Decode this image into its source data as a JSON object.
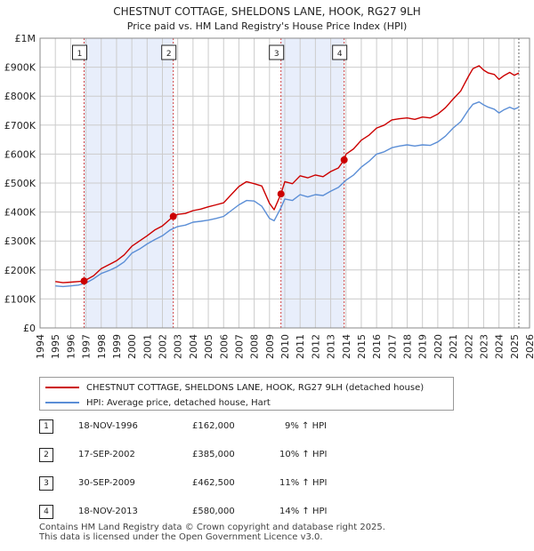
{
  "colors": {
    "property": "#cc0000",
    "hpi": "#5b8ed6",
    "shade": "#e8eefb",
    "grid": "#cccccc",
    "marker_line": "#d04040"
  },
  "chart_data": {
    "type": "line",
    "title": "CHESTNUT COTTAGE, SHELDONS LANE, HOOK, RG27 9LH",
    "subtitle": "Price paid vs. HM Land Registry's House Price Index (HPI)",
    "xlim": [
      1994,
      2026
    ],
    "ylim": [
      0,
      1000000
    ],
    "x_ticks": [
      1994,
      1995,
      1996,
      1997,
      1998,
      1999,
      2000,
      2001,
      2002,
      2003,
      2004,
      2005,
      2006,
      2007,
      2008,
      2009,
      2010,
      2011,
      2012,
      2013,
      2014,
      2015,
      2016,
      2017,
      2018,
      2019,
      2020,
      2021,
      2022,
      2023,
      2024,
      2025,
      2026
    ],
    "x_tick_labels": [
      "1994",
      "1995",
      "1996",
      "1997",
      "1998",
      "1999",
      "2000",
      "2001",
      "2002",
      "2003",
      "2004",
      "2005",
      "2006",
      "2007",
      "2008",
      "2009",
      "2010",
      "2011",
      "2012",
      "2013",
      "2014",
      "2015",
      "2016",
      "2017",
      "2018",
      "2019",
      "2020",
      "2021",
      "2022",
      "2023",
      "2024",
      "2025",
      "2026"
    ],
    "y_ticks": [
      0,
      100000,
      200000,
      300000,
      400000,
      500000,
      600000,
      700000,
      800000,
      900000,
      1000000
    ],
    "y_tick_labels": [
      "£0",
      "£100K",
      "£200K",
      "£300K",
      "£400K",
      "£500K",
      "£600K",
      "£700K",
      "£800K",
      "£900K",
      "£1M"
    ],
    "shaded_periods": [
      [
        1996.88,
        2002.71
      ],
      [
        2009.75,
        2013.88
      ]
    ],
    "latest_data_marker": 2025.3,
    "series": [
      {
        "name": "CHESTNUT COTTAGE, SHELDONS LANE, HOOK, RG27 9LH (detached house)",
        "x": [
          1995,
          1995.5,
          1996,
          1996.5,
          1996.88,
          1997.5,
          1998,
          1998.5,
          1999,
          1999.5,
          2000,
          2000.5,
          2001,
          2001.5,
          2002,
          2002.71,
          2003,
          2003.5,
          2004,
          2004.5,
          2005,
          2005.5,
          2006,
          2006.5,
          2007,
          2007.5,
          2008,
          2008.5,
          2009,
          2009.3,
          2009.75,
          2010,
          2010.5,
          2011,
          2011.5,
          2012,
          2012.5,
          2013,
          2013.5,
          2013.88,
          2014,
          2014.5,
          2015,
          2015.5,
          2016,
          2016.5,
          2017,
          2017.5,
          2018,
          2018.5,
          2019,
          2019.5,
          2020,
          2020.5,
          2021,
          2021.5,
          2022,
          2022.3,
          2022.7,
          2023,
          2023.3,
          2023.7,
          2024,
          2024.3,
          2024.7,
          2025,
          2025.3
        ],
        "y": [
          160000,
          156000,
          158000,
          160000,
          162000,
          180000,
          205000,
          218000,
          232000,
          252000,
          282000,
          300000,
          318000,
          338000,
          352000,
          385000,
          392000,
          395000,
          405000,
          410000,
          418000,
          425000,
          432000,
          460000,
          488000,
          505000,
          498000,
          490000,
          430000,
          408000,
          462500,
          505000,
          498000,
          525000,
          518000,
          528000,
          522000,
          540000,
          552000,
          580000,
          600000,
          618000,
          648000,
          665000,
          690000,
          700000,
          718000,
          722000,
          725000,
          720000,
          728000,
          725000,
          738000,
          760000,
          790000,
          818000,
          868000,
          895000,
          905000,
          890000,
          880000,
          875000,
          858000,
          870000,
          882000,
          872000,
          880000
        ]
      },
      {
        "name": "HPI: Average price, detached house, Hart",
        "x": [
          1995,
          1995.5,
          1996,
          1996.5,
          1997,
          1997.5,
          1998,
          1998.5,
          1999,
          1999.5,
          2000,
          2000.5,
          2001,
          2001.5,
          2002,
          2002.5,
          2003,
          2003.5,
          2004,
          2004.5,
          2005,
          2005.5,
          2006,
          2006.5,
          2007,
          2007.5,
          2008,
          2008.5,
          2009,
          2009.3,
          2009.75,
          2010,
          2010.5,
          2011,
          2011.5,
          2012,
          2012.5,
          2013,
          2013.5,
          2014,
          2014.5,
          2015,
          2015.5,
          2016,
          2016.5,
          2017,
          2017.5,
          2018,
          2018.5,
          2019,
          2019.5,
          2020,
          2020.5,
          2021,
          2021.5,
          2022,
          2022.3,
          2022.7,
          2023,
          2023.3,
          2023.7,
          2024,
          2024.3,
          2024.7,
          2025,
          2025.3
        ],
        "y": [
          145000,
          143000,
          145000,
          148000,
          155000,
          170000,
          188000,
          198000,
          210000,
          228000,
          258000,
          272000,
          290000,
          305000,
          318000,
          338000,
          350000,
          355000,
          365000,
          368000,
          372000,
          378000,
          385000,
          405000,
          425000,
          440000,
          438000,
          420000,
          378000,
          370000,
          415000,
          445000,
          440000,
          460000,
          452000,
          460000,
          457000,
          472000,
          485000,
          510000,
          528000,
          555000,
          575000,
          600000,
          608000,
          622000,
          628000,
          632000,
          628000,
          632000,
          630000,
          642000,
          662000,
          690000,
          712000,
          752000,
          772000,
          780000,
          770000,
          762000,
          755000,
          742000,
          752000,
          762000,
          755000,
          762000
        ]
      }
    ]
  },
  "legend": {
    "property_label": "CHESTNUT COTTAGE, SHELDONS LANE, HOOK, RG27 9LH (detached house)",
    "hpi_label": "HPI: Average price, detached house, Hart"
  },
  "sales": [
    {
      "num": "1",
      "date": "18-NOV-1996",
      "price": "£162,000",
      "hpi": "9% ↑ HPI",
      "x": 1996.88,
      "y": 162000
    },
    {
      "num": "2",
      "date": "17-SEP-2002",
      "price": "£385,000",
      "hpi": "10% ↑ HPI",
      "x": 2002.71,
      "y": 385000
    },
    {
      "num": "3",
      "date": "30-SEP-2009",
      "price": "£462,500",
      "hpi": "11% ↑ HPI",
      "x": 2009.75,
      "y": 462500
    },
    {
      "num": "4",
      "date": "18-NOV-2013",
      "price": "£580,000",
      "hpi": "14% ↑ HPI",
      "x": 2013.88,
      "y": 580000
    }
  ],
  "footer": {
    "line1": "Contains HM Land Registry data © Crown copyright and database right 2025.",
    "line2": "This data is licensed under the Open Government Licence v3.0."
  }
}
